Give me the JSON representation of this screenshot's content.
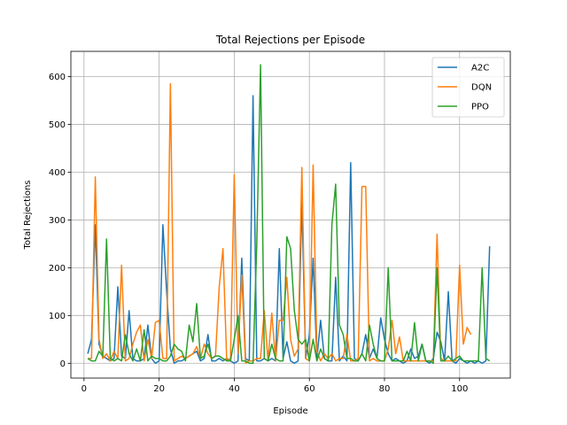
{
  "chart_data": {
    "type": "line",
    "title": "Total Rejections per Episode",
    "xlabel": "Episode",
    "ylabel": "Total Rejections",
    "xlim": [
      -3.5,
      113.5
    ],
    "ylim": [
      -31,
      653
    ],
    "xticks": [
      0,
      20,
      40,
      60,
      80,
      100
    ],
    "yticks": [
      0,
      100,
      200,
      300,
      400,
      500,
      600
    ],
    "grid": true,
    "legend_position": "top-right",
    "series": [
      {
        "name": "A2C",
        "color": "#1f77b4",
        "x_start": 1,
        "values": [
          20,
          50,
          290,
          40,
          15,
          10,
          5,
          10,
          160,
          15,
          10,
          110,
          10,
          5,
          5,
          10,
          80,
          10,
          0,
          5,
          290,
          150,
          30,
          0,
          5,
          5,
          10,
          15,
          20,
          25,
          5,
          10,
          60,
          5,
          5,
          10,
          5,
          10,
          5,
          0,
          5,
          220,
          10,
          5,
          560,
          5,
          5,
          10,
          5,
          10,
          5,
          240,
          10,
          45,
          5,
          0,
          5,
          340,
          10,
          60,
          220,
          10,
          90,
          10,
          5,
          5,
          180,
          5,
          15,
          5,
          420,
          10,
          5,
          20,
          60,
          10,
          30,
          10,
          95,
          50,
          20,
          5,
          10,
          5,
          0,
          5,
          30,
          10,
          15,
          40,
          5,
          0,
          10,
          65,
          45,
          5,
          150,
          5,
          0,
          10,
          5,
          0,
          5,
          0,
          5,
          0,
          5,
          245
        ]
      },
      {
        "name": "DQN",
        "color": "#ff7f0e",
        "x_start": 1,
        "values": [
          10,
          10,
          390,
          50,
          10,
          20,
          5,
          25,
          10,
          205,
          5,
          10,
          40,
          65,
          80,
          5,
          50,
          10,
          85,
          90,
          10,
          10,
          585,
          5,
          10,
          15,
          10,
          15,
          20,
          35,
          10,
          40,
          20,
          10,
          15,
          160,
          240,
          5,
          10,
          395,
          20,
          185,
          0,
          5,
          5,
          10,
          10,
          110,
          5,
          105,
          5,
          90,
          90,
          180,
          50,
          15,
          30,
          410,
          10,
          5,
          415,
          25,
          5,
          20,
          10,
          20,
          5,
          10,
          10,
          60,
          5,
          5,
          10,
          370,
          370,
          5,
          10,
          5,
          5,
          5,
          30,
          90,
          20,
          55,
          5,
          5,
          5,
          5,
          5,
          5,
          5,
          5,
          5,
          270,
          10,
          5,
          5,
          5,
          5,
          205,
          40,
          75,
          60
        ]
      },
      {
        "name": "PPO",
        "color": "#2ca02c",
        "x_start": 1,
        "values": [
          10,
          5,
          5,
          25,
          15,
          260,
          10,
          5,
          10,
          5,
          60,
          20,
          5,
          30,
          5,
          70,
          5,
          15,
          10,
          10,
          5,
          5,
          15,
          40,
          30,
          25,
          5,
          80,
          45,
          125,
          10,
          15,
          40,
          10,
          15,
          15,
          10,
          5,
          5,
          50,
          100,
          5,
          5,
          0,
          0,
          250,
          625,
          10,
          5,
          40,
          10,
          5,
          5,
          265,
          240,
          110,
          50,
          40,
          50,
          5,
          50,
          5,
          30,
          10,
          5,
          290,
          375,
          80,
          60,
          10,
          10,
          5,
          5,
          20,
          5,
          80,
          40,
          10,
          5,
          5,
          200,
          5,
          5,
          5,
          5,
          25,
          5,
          85,
          5,
          40,
          5,
          5,
          0,
          200,
          5,
          5,
          15,
          5,
          10,
          15,
          5,
          5,
          5,
          5,
          5,
          200,
          10,
          5
        ]
      }
    ]
  }
}
